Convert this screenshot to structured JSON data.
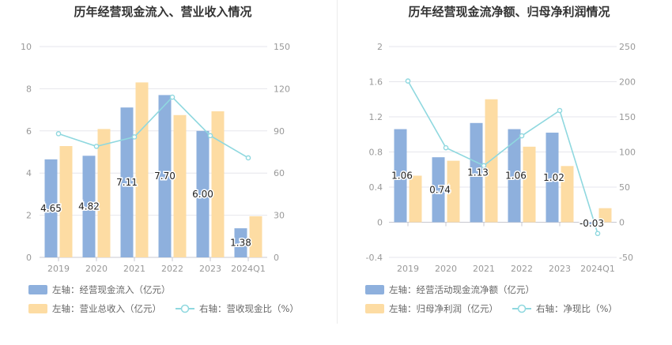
{
  "chart_data": [
    {
      "type": "bar",
      "title": "历年经营现金流入、营业收入情况",
      "categories": [
        "2019",
        "2020",
        "2021",
        "2022",
        "2023",
        "2024Q1"
      ],
      "y_left": {
        "ticks": [
          "0",
          "2",
          "4",
          "6",
          "8",
          "10"
        ],
        "ylim": [
          0,
          10
        ]
      },
      "y_right": {
        "ticks": [
          "0",
          "30",
          "60",
          "90",
          "120",
          "150"
        ],
        "ylim": [
          0,
          150
        ]
      },
      "series": [
        {
          "name": "左轴：经营现金流入（亿元）",
          "type": "bar",
          "axis": "left",
          "color": "#8eb0dd",
          "legend_symbol": "bar",
          "values": [
            4.65,
            4.82,
            7.11,
            7.7,
            6.0,
            1.38
          ],
          "labels": [
            "4.65",
            "4.82",
            "7.11",
            "7.70",
            "6.00",
            "1.38"
          ]
        },
        {
          "name": "左轴：营业总收入（亿元）",
          "type": "bar",
          "axis": "left",
          "color": "#fddca3",
          "legend_symbol": "bar",
          "values": [
            5.28,
            6.09,
            8.3,
            6.75,
            6.93,
            1.95
          ]
        },
        {
          "name": "右轴：营收现金比（%）",
          "type": "line",
          "axis": "right",
          "color": "#8fd8df",
          "legend_symbol": "line",
          "values": [
            88,
            79,
            85.7,
            114,
            86.6,
            70.8
          ]
        }
      ],
      "grid": true,
      "legend_position": "bottom"
    },
    {
      "type": "bar",
      "title": "历年经营现金流净额、归母净利润情况",
      "categories": [
        "2019",
        "2020",
        "2021",
        "2022",
        "2023",
        "2024Q1"
      ],
      "y_left": {
        "ticks": [
          "-0.4",
          "0",
          "0.4",
          "0.8",
          "1.2",
          "1.6",
          "2"
        ],
        "ylim": [
          -0.4,
          2
        ]
      },
      "y_right": {
        "ticks": [
          "-50",
          "0",
          "50",
          "100",
          "150",
          "200",
          "250"
        ],
        "ylim": [
          -50,
          250
        ]
      },
      "series": [
        {
          "name": "左轴：经营活动现金流净额（亿元）",
          "type": "bar",
          "axis": "left",
          "color": "#8eb0dd",
          "legend_symbol": "bar",
          "values": [
            1.06,
            0.74,
            1.13,
            1.06,
            1.02,
            -0.03
          ],
          "labels": [
            "1.06",
            "0.74",
            "1.13",
            "1.06",
            "1.02",
            "-0.03"
          ]
        },
        {
          "name": "左轴：归母净利润（亿元）",
          "type": "bar",
          "axis": "left",
          "color": "#fddca3",
          "legend_symbol": "bar",
          "values": [
            0.53,
            0.7,
            1.4,
            0.86,
            0.64,
            0.16
          ]
        },
        {
          "name": "右轴：净现比（%）",
          "type": "line",
          "axis": "right",
          "color": "#8fd8df",
          "legend_symbol": "line",
          "values": [
            201,
            106,
            80.5,
            123,
            159,
            -16
          ]
        }
      ],
      "grid": true,
      "legend_position": "bottom"
    }
  ]
}
